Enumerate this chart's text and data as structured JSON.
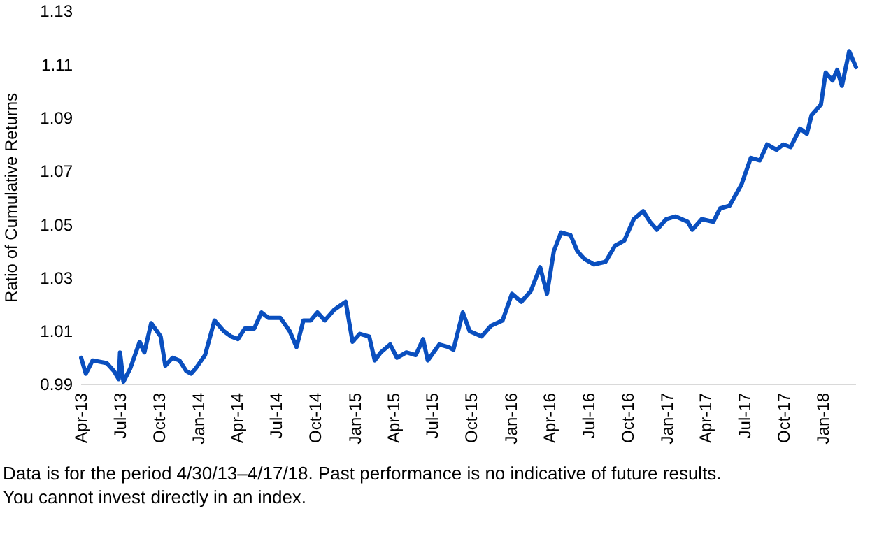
{
  "chart_data": {
    "type": "line",
    "ylabel": "Ratio of Cumulative Returns",
    "ylim": [
      0.99,
      1.13
    ],
    "yticks": [
      0.99,
      1.01,
      1.03,
      1.05,
      1.07,
      1.09,
      1.11,
      1.13
    ],
    "xlim": [
      "2013-04-30",
      "2018-04-17"
    ],
    "xticks": [
      {
        "value": "2013-04-30",
        "label": "Apr-13"
      },
      {
        "value": "2013-07-30",
        "label": "Jul-13"
      },
      {
        "value": "2013-10-30",
        "label": "Oct-13"
      },
      {
        "value": "2014-01-30",
        "label": "Jan-14"
      },
      {
        "value": "2014-04-30",
        "label": "Apr-14"
      },
      {
        "value": "2014-07-30",
        "label": "Jul-14"
      },
      {
        "value": "2014-10-30",
        "label": "Oct-14"
      },
      {
        "value": "2015-01-30",
        "label": "Jan-15"
      },
      {
        "value": "2015-04-30",
        "label": "Apr-15"
      },
      {
        "value": "2015-07-30",
        "label": "Jul-15"
      },
      {
        "value": "2015-10-30",
        "label": "Oct-15"
      },
      {
        "value": "2016-01-30",
        "label": "Jan-16"
      },
      {
        "value": "2016-04-30",
        "label": "Apr-16"
      },
      {
        "value": "2016-07-30",
        "label": "Jul-16"
      },
      {
        "value": "2016-10-30",
        "label": "Oct-16"
      },
      {
        "value": "2017-01-30",
        "label": "Jan-17"
      },
      {
        "value": "2017-04-30",
        "label": "Apr-17"
      },
      {
        "value": "2017-07-30",
        "label": "Jul-17"
      },
      {
        "value": "2017-10-30",
        "label": "Oct-17"
      },
      {
        "value": "2018-01-30",
        "label": "Jan-18"
      }
    ],
    "x": [
      "2013-04-30",
      "2013-05-11",
      "2013-05-27",
      "2013-06-29",
      "2013-07-16",
      "2013-07-27",
      "2013-07-30",
      "2013-08-07",
      "2013-08-23",
      "2013-09-14",
      "2013-09-25",
      "2013-10-11",
      "2013-11-02",
      "2013-11-13",
      "2013-11-30",
      "2013-12-16",
      "2014-01-01",
      "2014-01-12",
      "2014-01-23",
      "2014-02-14",
      "2014-03-08",
      "2014-03-30",
      "2014-04-16",
      "2014-05-02",
      "2014-05-18",
      "2014-06-09",
      "2014-06-26",
      "2014-07-12",
      "2014-08-09",
      "2014-08-31",
      "2014-09-16",
      "2014-10-02",
      "2014-10-19",
      "2014-11-04",
      "2014-11-21",
      "2014-12-13",
      "2015-01-09",
      "2015-01-25",
      "2015-02-11",
      "2015-03-05",
      "2015-03-18",
      "2015-04-01",
      "2015-04-23",
      "2015-05-09",
      "2015-05-31",
      "2015-06-22",
      "2015-07-09",
      "2015-07-20",
      "2015-08-16",
      "2015-09-07",
      "2015-09-18",
      "2015-10-10",
      "2015-10-26",
      "2015-11-23",
      "2015-12-15",
      "2016-01-11",
      "2016-02-02",
      "2016-02-24",
      "2016-03-17",
      "2016-04-08",
      "2016-04-24",
      "2016-05-10",
      "2016-05-27",
      "2016-06-18",
      "2016-07-04",
      "2016-07-21",
      "2016-08-12",
      "2016-09-08",
      "2016-09-30",
      "2016-10-22",
      "2016-11-13",
      "2016-12-05",
      "2016-12-21",
      "2017-01-06",
      "2017-01-28",
      "2017-02-19",
      "2017-03-19",
      "2017-03-30",
      "2017-04-21",
      "2017-05-18",
      "2017-06-03",
      "2017-06-25",
      "2017-07-23",
      "2017-08-14",
      "2017-09-04",
      "2017-09-21",
      "2017-10-13",
      "2017-10-29",
      "2017-11-15",
      "2017-12-07",
      "2017-12-23",
      "2018-01-03",
      "2018-01-25",
      "2018-02-05",
      "2018-02-21",
      "2018-03-04",
      "2018-03-15",
      "2018-04-01",
      "2018-04-17"
    ],
    "series": [
      {
        "color": "#0a4fbf",
        "values": [
          1.0,
          0.994,
          0.999,
          0.998,
          0.995,
          0.992,
          1.002,
          0.991,
          0.996,
          1.006,
          1.002,
          1.013,
          1.008,
          0.997,
          1.0,
          0.999,
          0.995,
          0.994,
          0.996,
          1.001,
          1.014,
          1.01,
          1.008,
          1.007,
          1.011,
          1.011,
          1.017,
          1.015,
          1.015,
          1.01,
          1.004,
          1.014,
          1.014,
          1.017,
          1.014,
          1.018,
          1.021,
          1.006,
          1.009,
          1.008,
          0.999,
          1.002,
          1.005,
          1.0,
          1.002,
          1.001,
          1.007,
          0.999,
          1.005,
          1.004,
          1.003,
          1.017,
          1.01,
          1.008,
          1.012,
          1.014,
          1.024,
          1.021,
          1.025,
          1.034,
          1.024,
          1.04,
          1.047,
          1.046,
          1.04,
          1.037,
          1.035,
          1.036,
          1.042,
          1.044,
          1.052,
          1.055,
          1.051,
          1.048,
          1.052,
          1.053,
          1.051,
          1.048,
          1.052,
          1.051,
          1.056,
          1.057,
          1.065,
          1.075,
          1.074,
          1.08,
          1.078,
          1.08,
          1.079,
          1.086,
          1.084,
          1.091,
          1.095,
          1.107,
          1.104,
          1.108,
          1.102,
          1.115,
          1.109
        ]
      }
    ],
    "annotations": [
      "Data is for the period 4/30/13–4/17/18. Past performance is no indicative of future results. You cannot invest directly in an index."
    ],
    "grid": false,
    "marker": "none",
    "line_style": "solid"
  }
}
